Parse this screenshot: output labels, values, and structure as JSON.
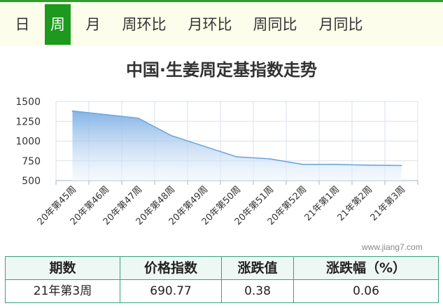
{
  "tabs": [
    {
      "label": "日",
      "active": false
    },
    {
      "label": "周",
      "active": true
    },
    {
      "label": "月",
      "active": false
    },
    {
      "label": "周环比",
      "active": false
    },
    {
      "label": "月环比",
      "active": false
    },
    {
      "label": "周同比",
      "active": false
    },
    {
      "label": "月同比",
      "active": false
    }
  ],
  "watermark": "www.jiang7.com",
  "chart_data": {
    "type": "area",
    "title": "中国·生姜周定基指数走势",
    "xlabel": "",
    "ylabel": "",
    "categories": [
      "20年第45周",
      "20年第46周",
      "20年第47周",
      "20年第48周",
      "20年第49周",
      "20年第50周",
      "20年第51周",
      "20年第52周",
      "21年第1周",
      "21年第2周",
      "21年第3周"
    ],
    "series": [
      {
        "values": [
          1380,
          1335,
          1290,
          1070,
          935,
          800,
          775,
          705,
          705,
          695,
          690.77
        ]
      }
    ],
    "ylim": [
      500,
      1500
    ],
    "yticks": [
      500,
      750,
      1000,
      1250,
      1500
    ],
    "grid": true,
    "colors": {
      "line": "#6fa8dc",
      "fill_top": "#7fb0e6",
      "fill_bottom": "#eef5fc",
      "grid": "#d9e1ea"
    }
  },
  "table": {
    "headers": [
      "期数",
      "价格指数",
      "涨跌值",
      "涨跌幅（%）"
    ],
    "rows": [
      [
        "21年第3周",
        "690.77",
        "0.38",
        "0.06"
      ]
    ]
  }
}
